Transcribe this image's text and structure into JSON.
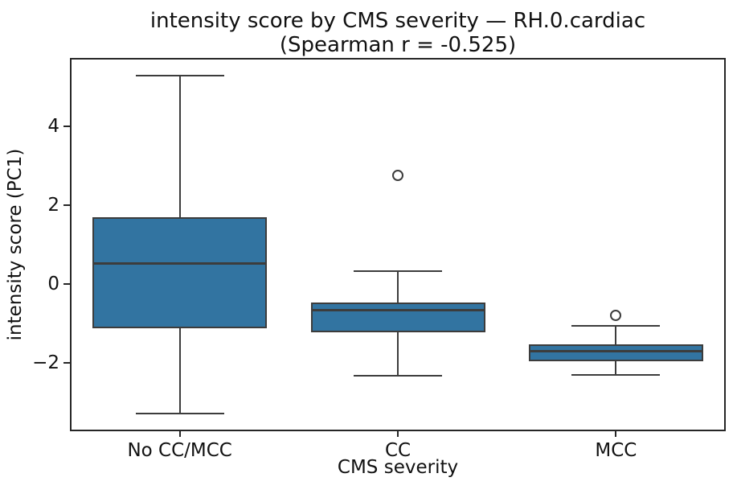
{
  "chart_data": {
    "type": "box",
    "title": "intensity score by CMS severity — RH.0.cardiac",
    "subtitle": "(Spearman r = -0.525)",
    "xlabel": "CMS severity",
    "ylabel": "intensity score (PC1)",
    "categories": [
      "No CC/MCC",
      "CC",
      "MCC"
    ],
    "ylim": [
      -3.71,
      5.71
    ],
    "yticks": [
      4,
      2,
      0,
      -2
    ],
    "ytick_labels": [
      "4",
      "2",
      "0",
      "−2"
    ],
    "grid": false,
    "legend": "none",
    "boxes": [
      {
        "category": "No CC/MCC",
        "whisker_low": -3.29,
        "q1": -1.13,
        "median": 0.53,
        "q3": 1.69,
        "whisker_high": 5.29,
        "outliers": []
      },
      {
        "category": "CC",
        "whisker_low": -2.32,
        "q1": -1.22,
        "median": -0.67,
        "q3": -0.47,
        "whisker_high": 0.33,
        "outliers": [
          2.76
        ]
      },
      {
        "category": "MCC",
        "whisker_low": -2.31,
        "q1": -1.95,
        "median": -1.71,
        "q3": -1.53,
        "whisker_high": -1.06,
        "outliers": [
          -0.8
        ]
      }
    ],
    "colors": {
      "box_fill": "#3274a1",
      "line": "#3c3c3c",
      "spine": "#262626",
      "text": "#111111",
      "background": "#ffffff"
    }
  }
}
